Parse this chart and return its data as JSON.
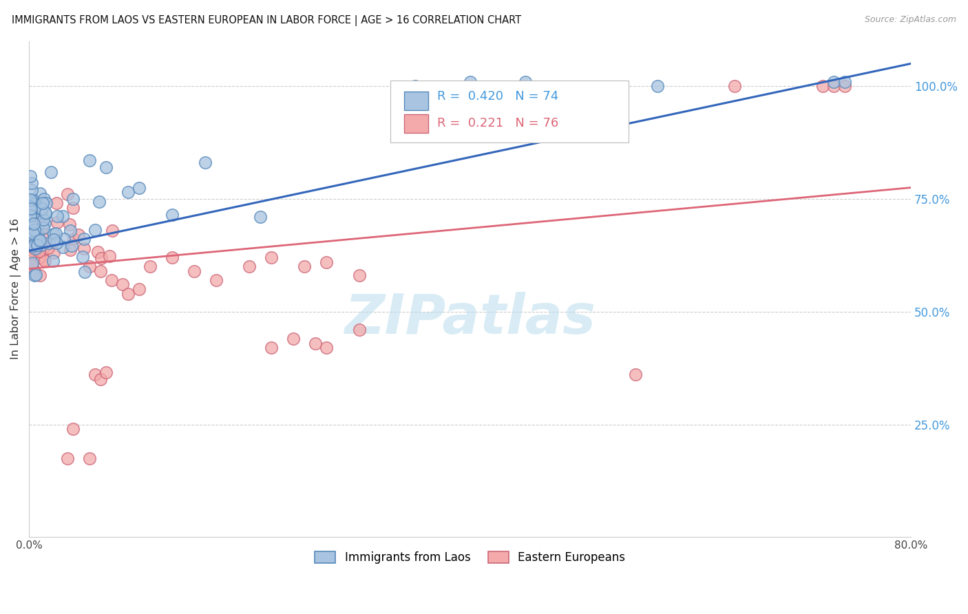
{
  "title": "IMMIGRANTS FROM LAOS VS EASTERN EUROPEAN IN LABOR FORCE | AGE > 16 CORRELATION CHART",
  "source": "Source: ZipAtlas.com",
  "ylabel": "In Labor Force | Age > 16",
  "xlim": [
    0.0,
    0.8
  ],
  "ylim": [
    0.0,
    1.1
  ],
  "xtick_positions": [
    0.0,
    0.1,
    0.2,
    0.3,
    0.4,
    0.5,
    0.6,
    0.7,
    0.8
  ],
  "xticklabels": [
    "0.0%",
    "",
    "",
    "",
    "",
    "",
    "",
    "",
    "80.0%"
  ],
  "yticks_right": [
    0.25,
    0.5,
    0.75,
    1.0
  ],
  "ytick_right_labels": [
    "25.0%",
    "50.0%",
    "75.0%",
    "100.0%"
  ],
  "blue_fill": "#A8C4E0",
  "blue_edge": "#5588BB",
  "pink_fill": "#F4AAAA",
  "pink_edge": "#CC6677",
  "blue_line": "#3366BB",
  "pink_line": "#DD6677",
  "R_blue": 0.42,
  "N_blue": 74,
  "R_pink": 0.221,
  "N_pink": 76,
  "legend_label_blue": "Immigrants from Laos",
  "legend_label_pink": "Eastern Europeans",
  "watermark": "ZIPatlas",
  "watermark_color": "#BBDDEE",
  "background_color": "#FFFFFF",
  "title_color": "#111111",
  "right_axis_color": "#4499DD",
  "grid_color": "#CCCCCC",
  "blue_trend_x": [
    0.0,
    0.8
  ],
  "blue_trend_y": [
    0.635,
    1.05
  ],
  "pink_trend_x": [
    0.0,
    0.8
  ],
  "pink_trend_y": [
    0.595,
    0.775
  ]
}
